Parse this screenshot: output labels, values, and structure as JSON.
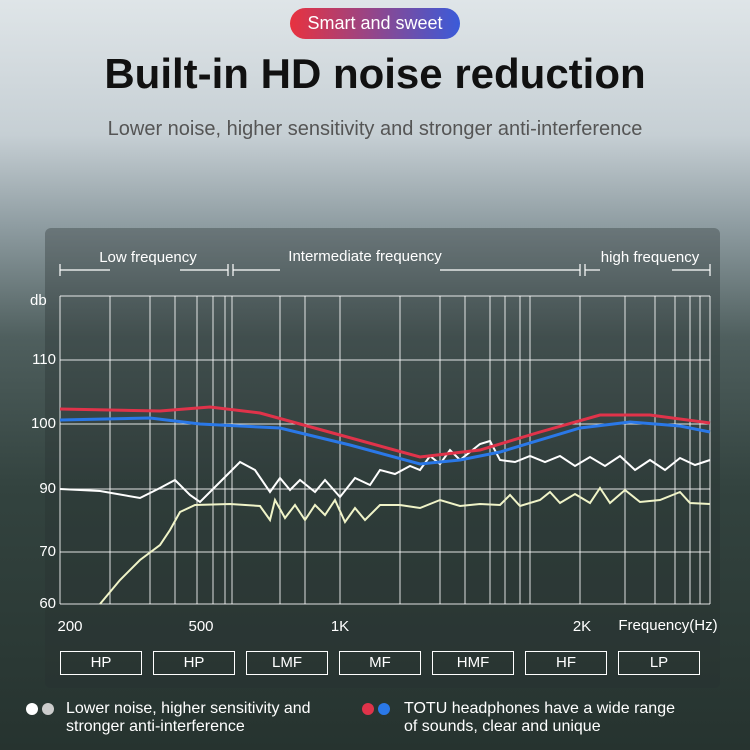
{
  "badge": "Smart and sweet",
  "title": "Built-in HD noise reduction",
  "subtitle": "Lower noise, higher sensitivity and stronger anti-interference",
  "bands": [
    "Low frequency",
    "Intermediate frequency",
    "high frequency"
  ],
  "y_axis": {
    "label": "db",
    "ticks": [
      "110",
      "100",
      "90",
      "70",
      "60"
    ]
  },
  "x_axis": {
    "ticks": [
      "200",
      "500",
      "1K",
      "2K"
    ],
    "label": "Frequency(Hz)"
  },
  "filters": [
    "HP",
    "HP",
    "LMF",
    "MF",
    "HMF",
    "HF",
    "LP"
  ],
  "legend": [
    {
      "text": "Lower noise, higher sensitivity and stronger anti-interference"
    },
    {
      "text": "TOTU headphones have a wide range of sounds, clear and unique"
    }
  ]
}
